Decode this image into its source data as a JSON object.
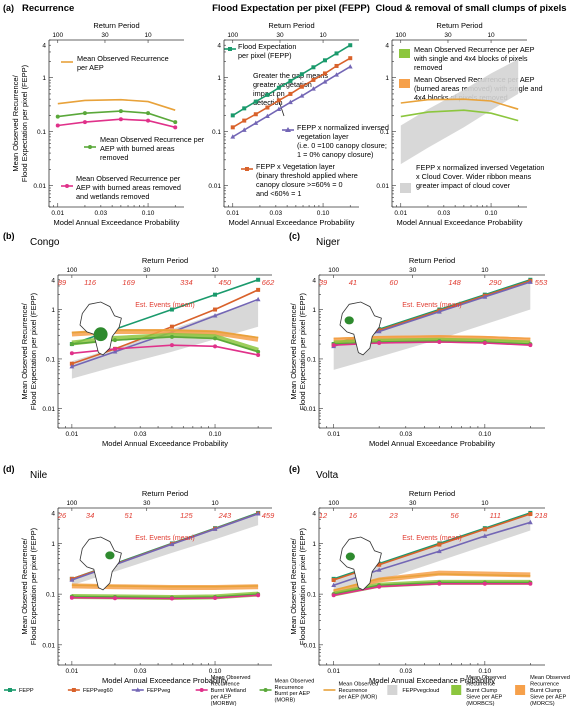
{
  "figure": {
    "colors": {
      "FEPP": "#1a9a6c",
      "FEPPveg60": "#d9622b",
      "FEPPveg": "#7366b5",
      "MORBW": "#e0318a",
      "MORB": "#5aa83a",
      "MOR": "#e8a23a",
      "FEPPvegcloud": "#d4d4d4",
      "MORBCS": "#8cc63e",
      "MORBCS_rib": "#f6a04a",
      "est": "#e03c31"
    },
    "axis": {
      "xlabel": "Model Annual Exceedance Probability",
      "toplabel": "Return Period",
      "ylabel1": "Mean Observed Recurrence/",
      "ylabel2": "Flood Expectation per pixel (FEPP)",
      "xticks": [
        "0.01",
        "0.03",
        "0.10"
      ],
      "topticks": [
        "100",
        "30",
        "10"
      ],
      "yticks": [
        "4",
        "1",
        "0.1",
        "0.01"
      ],
      "est_label": "Est. Events (mean)"
    },
    "panel_a": {
      "letter": "(a)",
      "titles": [
        "Recurrence",
        "Flood Expectation per pixel (FEPP)",
        "Cloud & removal of small clumps of pixels"
      ],
      "notes": {
        "mor": "Mean Observed Recurrence per AEP",
        "morb": "Mean Observed Recurrence per AEP with burned areas removed",
        "morbw": "Mean Observed Recurrence per AEP with burned areas and wetlands removed",
        "fepp": "Flood Expectation per pixel (FEPP)",
        "gap": "Greater the gap means greater vegetation impact on detection",
        "feppveg": "FEPP x normalized inversed vegetation layer (i.e. 0 =100 canopy closure; 1 = 0% canopy closure)",
        "feppveg60": "FEPP x Vegetation layer (binary threshold applied where canopy closure >=60% = 0 and <60% = 1",
        "morbcs": "Mean Observed Recurrence per AEP with single and 4x4 blocks of pixels removed",
        "morbcs2": "Mean Observed Recurrence per AEP (burned areas removed) with single and 4x4 blocks of pixels removed",
        "cloud": "FEPP x normalized inversed Vegetation x Cloud Cover. Wider ribbon means greater impact of cloud cover"
      }
    },
    "panel_b": {
      "letter": "(b)",
      "title": "Congo",
      "est": [
        "89",
        "116",
        "169",
        "334",
        "450",
        "662"
      ]
    },
    "panel_c": {
      "letter": "(c)",
      "title": "Niger",
      "est": [
        "39",
        "41",
        "60",
        "148",
        "290",
        "553"
      ]
    },
    "panel_d": {
      "letter": "(d)",
      "title": "Nile",
      "est": [
        "26",
        "34",
        "51",
        "125",
        "243",
        "459"
      ]
    },
    "panel_e": {
      "letter": "(e)",
      "title": "Volta",
      "est": [
        "12",
        "16",
        "23",
        "56",
        "111",
        "218"
      ]
    },
    "legend": [
      {
        "key": "FEPP",
        "label": "FEPP",
        "kind": "line",
        "marker": "square"
      },
      {
        "key": "FEPPveg60",
        "label": "FEPPveg60",
        "kind": "line",
        "marker": "square"
      },
      {
        "key": "FEPPveg",
        "label": "FEPPveg",
        "kind": "line",
        "marker": "triangle"
      },
      {
        "key": "MORBW",
        "label": "Mean Observed Recurrence Burnt Wetland per AEP (MORBW)",
        "kind": "line",
        "marker": "circle"
      },
      {
        "key": "MORB",
        "label": "Mean Observed Recurrence Burnt per AEP (MORB)",
        "kind": "line",
        "marker": "circle"
      },
      {
        "key": "MOR",
        "label": "Mean Observed Recurrence per AEP (MOR)",
        "kind": "line",
        "marker": "none"
      },
      {
        "key": "FEPPvegcloud",
        "label": "FEPPvegcloud",
        "kind": "box",
        "marker": "none"
      },
      {
        "key": "MORBCS",
        "label": "Mean Observed Recurrence Burnt Clump Sieve per AEP (MORBCS)",
        "kind": "box",
        "marker": "none"
      },
      {
        "key": "MORBCS_rib",
        "label": "Mean Observed Recurrence Burnt Clump Sieve per AEP (MORCS)",
        "kind": "box",
        "marker": "none"
      }
    ]
  },
  "chart_data": [
    {
      "type": "line",
      "panel": "a-recurrence",
      "title": "Recurrence",
      "log_x": true,
      "log_y": true,
      "xlabel": "Model Annual Exceedance Probability",
      "ylabel": "Mean Observed Recurrence/ Flood Expectation per pixel (FEPP)",
      "xlim": [
        0.008,
        0.25
      ],
      "ylim": [
        0.004,
        5
      ],
      "x": [
        0.01,
        0.02,
        0.05,
        0.1,
        0.2
      ],
      "series": [
        {
          "name": "MOR",
          "key": "MOR",
          "values": [
            0.33,
            0.38,
            0.39,
            0.36,
            0.25
          ]
        },
        {
          "name": "MORB",
          "key": "MORB",
          "values": [
            0.19,
            0.22,
            0.24,
            0.22,
            0.15
          ]
        },
        {
          "name": "MORBW",
          "key": "MORBW",
          "values": [
            0.13,
            0.15,
            0.17,
            0.16,
            0.12
          ]
        }
      ]
    },
    {
      "type": "line",
      "panel": "a-fepp",
      "title": "Flood Expectation per pixel (FEPP)",
      "log_x": true,
      "log_y": true,
      "xlim": [
        0.008,
        0.25
      ],
      "ylim": [
        0.004,
        5
      ],
      "x": [
        0.01,
        0.0134,
        0.018,
        0.0242,
        0.0324,
        0.0435,
        0.0583,
        0.0782,
        0.105,
        0.141,
        0.2
      ],
      "series": [
        {
          "name": "FEPP",
          "key": "FEPP",
          "values": [
            0.2,
            0.27,
            0.36,
            0.48,
            0.65,
            0.87,
            1.16,
            1.56,
            2.1,
            2.82,
            4.0
          ]
        },
        {
          "name": "FEPPveg60",
          "key": "FEPPveg60",
          "values": [
            0.12,
            0.16,
            0.21,
            0.28,
            0.38,
            0.5,
            0.68,
            0.91,
            1.2,
            1.65,
            2.3
          ]
        },
        {
          "name": "FEPPveg",
          "key": "FEPPveg",
          "values": [
            0.08,
            0.107,
            0.144,
            0.193,
            0.26,
            0.35,
            0.46,
            0.62,
            0.84,
            1.13,
            1.6
          ]
        }
      ]
    },
    {
      "type": "area",
      "panel": "a-cloud",
      "title": "Cloud & removal of small clumps of pixels",
      "log_x": true,
      "log_y": true,
      "xlim": [
        0.008,
        0.25
      ],
      "ylim": [
        0.004,
        5
      ],
      "x": [
        0.01,
        0.02,
        0.05,
        0.1,
        0.2
      ],
      "series": [
        {
          "name": "FEPPvegcloud",
          "key": "FEPPvegcloud",
          "kind": "band",
          "lower": [
            0.025,
            0.05,
            0.12,
            0.25,
            0.5
          ],
          "upper": [
            0.13,
            0.26,
            0.6,
            1.2,
            2.2
          ]
        },
        {
          "name": "MORBCS",
          "key": "MORBCS",
          "values": [
            0.19,
            0.23,
            0.25,
            0.22,
            0.16
          ]
        },
        {
          "name": "MORCS",
          "key": "MOR",
          "values": [
            0.34,
            0.39,
            0.4,
            0.37,
            0.26
          ]
        }
      ]
    },
    {
      "type": "line",
      "panel": "b",
      "title": "Congo",
      "log_x": true,
      "log_y": true,
      "xlim": [
        0.008,
        0.25
      ],
      "ylim": [
        0.004,
        5
      ],
      "x": [
        0.01,
        0.02,
        0.05,
        0.1,
        0.2
      ],
      "series": [
        {
          "name": "FEPPvegcloud",
          "key": "FEPPvegcloud",
          "kind": "band",
          "lower": [
            0.04,
            0.07,
            0.14,
            0.25,
            0.45
          ],
          "upper": [
            0.09,
            0.17,
            0.4,
            0.8,
            1.5
          ]
        },
        {
          "name": "FEPP",
          "key": "FEPP",
          "values": [
            0.2,
            0.4,
            1.0,
            2.0,
            4.0
          ]
        },
        {
          "name": "FEPPveg60",
          "key": "FEPPveg60",
          "values": [
            0.08,
            0.16,
            0.45,
            1.0,
            2.5
          ]
        },
        {
          "name": "FEPPveg",
          "key": "FEPPveg",
          "values": [
            0.07,
            0.14,
            0.35,
            0.75,
            1.6
          ]
        },
        {
          "name": "MORCS",
          "key": "MORBCS_rib",
          "kind": "ribbon",
          "values": [
            0.32,
            0.36,
            0.36,
            0.34,
            0.25
          ]
        },
        {
          "name": "MOR",
          "key": "MOR",
          "values": [
            0.34,
            0.38,
            0.38,
            0.36,
            0.27
          ]
        },
        {
          "name": "MORBCS",
          "key": "MORBCS",
          "kind": "ribbon",
          "values": [
            0.21,
            0.26,
            0.3,
            0.28,
            0.15
          ]
        },
        {
          "name": "MORB",
          "key": "MORB",
          "values": [
            0.2,
            0.24,
            0.28,
            0.26,
            0.14
          ]
        },
        {
          "name": "MORBW",
          "key": "MORBW",
          "values": [
            0.13,
            0.16,
            0.19,
            0.18,
            0.12
          ]
        }
      ]
    },
    {
      "type": "line",
      "panel": "c",
      "title": "Niger",
      "log_x": true,
      "log_y": true,
      "xlim": [
        0.008,
        0.25
      ],
      "ylim": [
        0.004,
        5
      ],
      "x": [
        0.01,
        0.02,
        0.05,
        0.1,
        0.2
      ],
      "series": [
        {
          "name": "FEPPvegcloud",
          "key": "FEPPvegcloud",
          "kind": "band",
          "lower": [
            0.06,
            0.11,
            0.25,
            0.5,
            1.0
          ],
          "upper": [
            0.18,
            0.37,
            0.9,
            1.8,
            3.6
          ]
        },
        {
          "name": "FEPP",
          "key": "FEPP",
          "values": [
            0.2,
            0.4,
            1.0,
            2.0,
            4.0
          ]
        },
        {
          "name": "FEPPveg60",
          "key": "FEPPveg60",
          "values": [
            0.19,
            0.38,
            0.95,
            1.9,
            3.8
          ]
        },
        {
          "name": "FEPPveg",
          "key": "FEPPveg",
          "values": [
            0.18,
            0.36,
            0.9,
            1.8,
            3.6
          ]
        },
        {
          "name": "MOR",
          "key": "MOR",
          "values": [
            0.26,
            0.28,
            0.29,
            0.28,
            0.26
          ]
        },
        {
          "name": "MORCS",
          "key": "MORBCS_rib",
          "kind": "ribbon",
          "values": [
            0.24,
            0.26,
            0.27,
            0.26,
            0.24
          ]
        },
        {
          "name": "MORBCS",
          "key": "MORBCS",
          "kind": "ribbon",
          "values": [
            0.21,
            0.23,
            0.24,
            0.23,
            0.21
          ]
        },
        {
          "name": "MORB",
          "key": "MORB",
          "values": [
            0.2,
            0.22,
            0.23,
            0.22,
            0.2
          ]
        },
        {
          "name": "MORBW",
          "key": "MORBW",
          "values": [
            0.19,
            0.21,
            0.22,
            0.21,
            0.19
          ]
        }
      ]
    },
    {
      "type": "line",
      "panel": "d",
      "title": "Nile",
      "log_x": true,
      "log_y": true,
      "xlim": [
        0.008,
        0.25
      ],
      "ylim": [
        0.004,
        5
      ],
      "x": [
        0.01,
        0.02,
        0.05,
        0.1,
        0.2
      ],
      "series": [
        {
          "name": "FEPPvegcloud",
          "key": "FEPPvegcloud",
          "kind": "band",
          "lower": [
            0.15,
            0.28,
            0.65,
            1.2,
            2.3
          ],
          "upper": [
            0.2,
            0.4,
            1.0,
            2.0,
            4.0
          ]
        },
        {
          "name": "FEPP",
          "key": "FEPP",
          "values": [
            0.2,
            0.4,
            1.0,
            2.0,
            4.0
          ]
        },
        {
          "name": "FEPPveg60",
          "key": "FEPPveg60",
          "values": [
            0.2,
            0.39,
            0.98,
            1.95,
            3.9
          ]
        },
        {
          "name": "FEPPveg",
          "key": "FEPPveg",
          "values": [
            0.19,
            0.38,
            0.96,
            1.92,
            3.85
          ]
        },
        {
          "name": "MORCS",
          "key": "MORBCS_rib",
          "kind": "ribbon",
          "values": [
            0.145,
            0.14,
            0.135,
            0.135,
            0.14
          ]
        },
        {
          "name": "MOR",
          "key": "MOR",
          "values": [
            0.15,
            0.145,
            0.14,
            0.14,
            0.145
          ]
        },
        {
          "name": "MORBCS",
          "key": "MORBCS",
          "kind": "ribbon",
          "values": [
            0.09,
            0.088,
            0.086,
            0.088,
            0.1
          ]
        },
        {
          "name": "MORB",
          "key": "MORB",
          "values": [
            0.09,
            0.088,
            0.086,
            0.088,
            0.1
          ]
        },
        {
          "name": "MORBW",
          "key": "MORBW",
          "values": [
            0.085,
            0.083,
            0.082,
            0.084,
            0.095
          ]
        }
      ]
    },
    {
      "type": "line",
      "panel": "e",
      "title": "Volta",
      "log_x": true,
      "log_y": true,
      "xlim": [
        0.008,
        0.25
      ],
      "ylim": [
        0.004,
        5
      ],
      "x": [
        0.01,
        0.02,
        0.05,
        0.1,
        0.2
      ],
      "series": [
        {
          "name": "FEPPvegcloud",
          "key": "FEPPvegcloud",
          "kind": "band",
          "lower": [
            0.09,
            0.18,
            0.45,
            0.9,
            1.8
          ],
          "upper": [
            0.19,
            0.38,
            0.95,
            1.9,
            3.8
          ]
        },
        {
          "name": "FEPP",
          "key": "FEPP",
          "values": [
            0.2,
            0.4,
            1.0,
            2.0,
            4.0
          ]
        },
        {
          "name": "FEPPveg60",
          "key": "FEPPveg60",
          "values": [
            0.19,
            0.38,
            0.95,
            1.9,
            3.8
          ]
        },
        {
          "name": "FEPPveg",
          "key": "FEPPveg",
          "values": [
            0.15,
            0.3,
            0.7,
            1.4,
            2.6
          ]
        },
        {
          "name": "MORCS",
          "key": "MORBCS_rib",
          "kind": "ribbon",
          "values": [
            0.11,
            0.19,
            0.26,
            0.25,
            0.24
          ]
        },
        {
          "name": "MOR",
          "key": "MOR",
          "values": [
            0.12,
            0.2,
            0.25,
            0.24,
            0.23
          ]
        },
        {
          "name": "MORBCS",
          "key": "MORBCS",
          "kind": "ribbon",
          "values": [
            0.1,
            0.15,
            0.17,
            0.17,
            0.17
          ]
        },
        {
          "name": "MORB",
          "key": "MORB",
          "values": [
            0.1,
            0.15,
            0.17,
            0.17,
            0.17
          ]
        },
        {
          "name": "MORBW",
          "key": "MORBW",
          "values": [
            0.095,
            0.14,
            0.16,
            0.16,
            0.16
          ]
        }
      ]
    }
  ]
}
